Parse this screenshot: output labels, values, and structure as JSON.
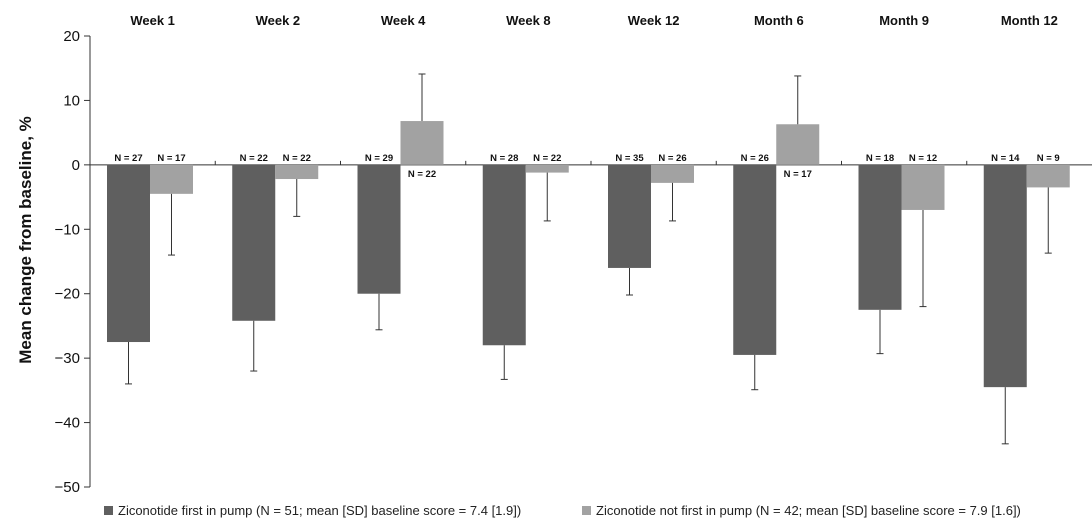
{
  "chart_data": {
    "type": "bar",
    "title": "",
    "xlabel": "",
    "ylabel": "Mean change from baseline, %",
    "ylim": [
      -50,
      20
    ],
    "yticks": [
      20,
      10,
      0,
      -10,
      -20,
      -30,
      -40,
      -50
    ],
    "ytick_labels": [
      "20",
      "10",
      "0",
      "−10",
      "−20",
      "−30",
      "−40",
      "−50"
    ],
    "grid": false,
    "legend_position": "bottom",
    "categories": [
      "Week 1",
      "Week 2",
      "Week 4",
      "Week 8",
      "Week 12",
      "Month 6",
      "Month 9",
      "Month 12"
    ],
    "series": [
      {
        "name": "Ziconotide first in pump (N = 51; mean [SD] baseline score = 7.4 [1.9])",
        "color": "#5f5f5f",
        "values": [
          -27.5,
          -24.2,
          -20.0,
          -28.0,
          -16.0,
          -29.5,
          -22.5,
          -34.5
        ],
        "error": [
          6.5,
          7.8,
          5.6,
          5.3,
          4.2,
          5.4,
          6.8,
          8.8
        ],
        "n_labels": [
          "N = 27",
          "N = 22",
          "N = 29",
          "N = 28",
          "N = 35",
          "N = 26",
          "N = 18",
          "N = 14"
        ]
      },
      {
        "name": "Ziconotide not first in pump (N = 42; mean [SD] baseline score = 7.9 [1.6])",
        "color": "#a2a2a2",
        "values": [
          -4.5,
          -2.2,
          6.8,
          -1.2,
          -2.8,
          6.3,
          -7.0,
          -3.5
        ],
        "error": [
          9.5,
          5.8,
          7.3,
          7.5,
          5.9,
          7.5,
          15.0,
          10.2
        ],
        "n_labels": [
          "N = 17",
          "N = 22",
          "N = 22",
          "N = 22",
          "N = 26",
          "N = 17",
          "N = 12",
          "N = 9"
        ]
      }
    ]
  }
}
